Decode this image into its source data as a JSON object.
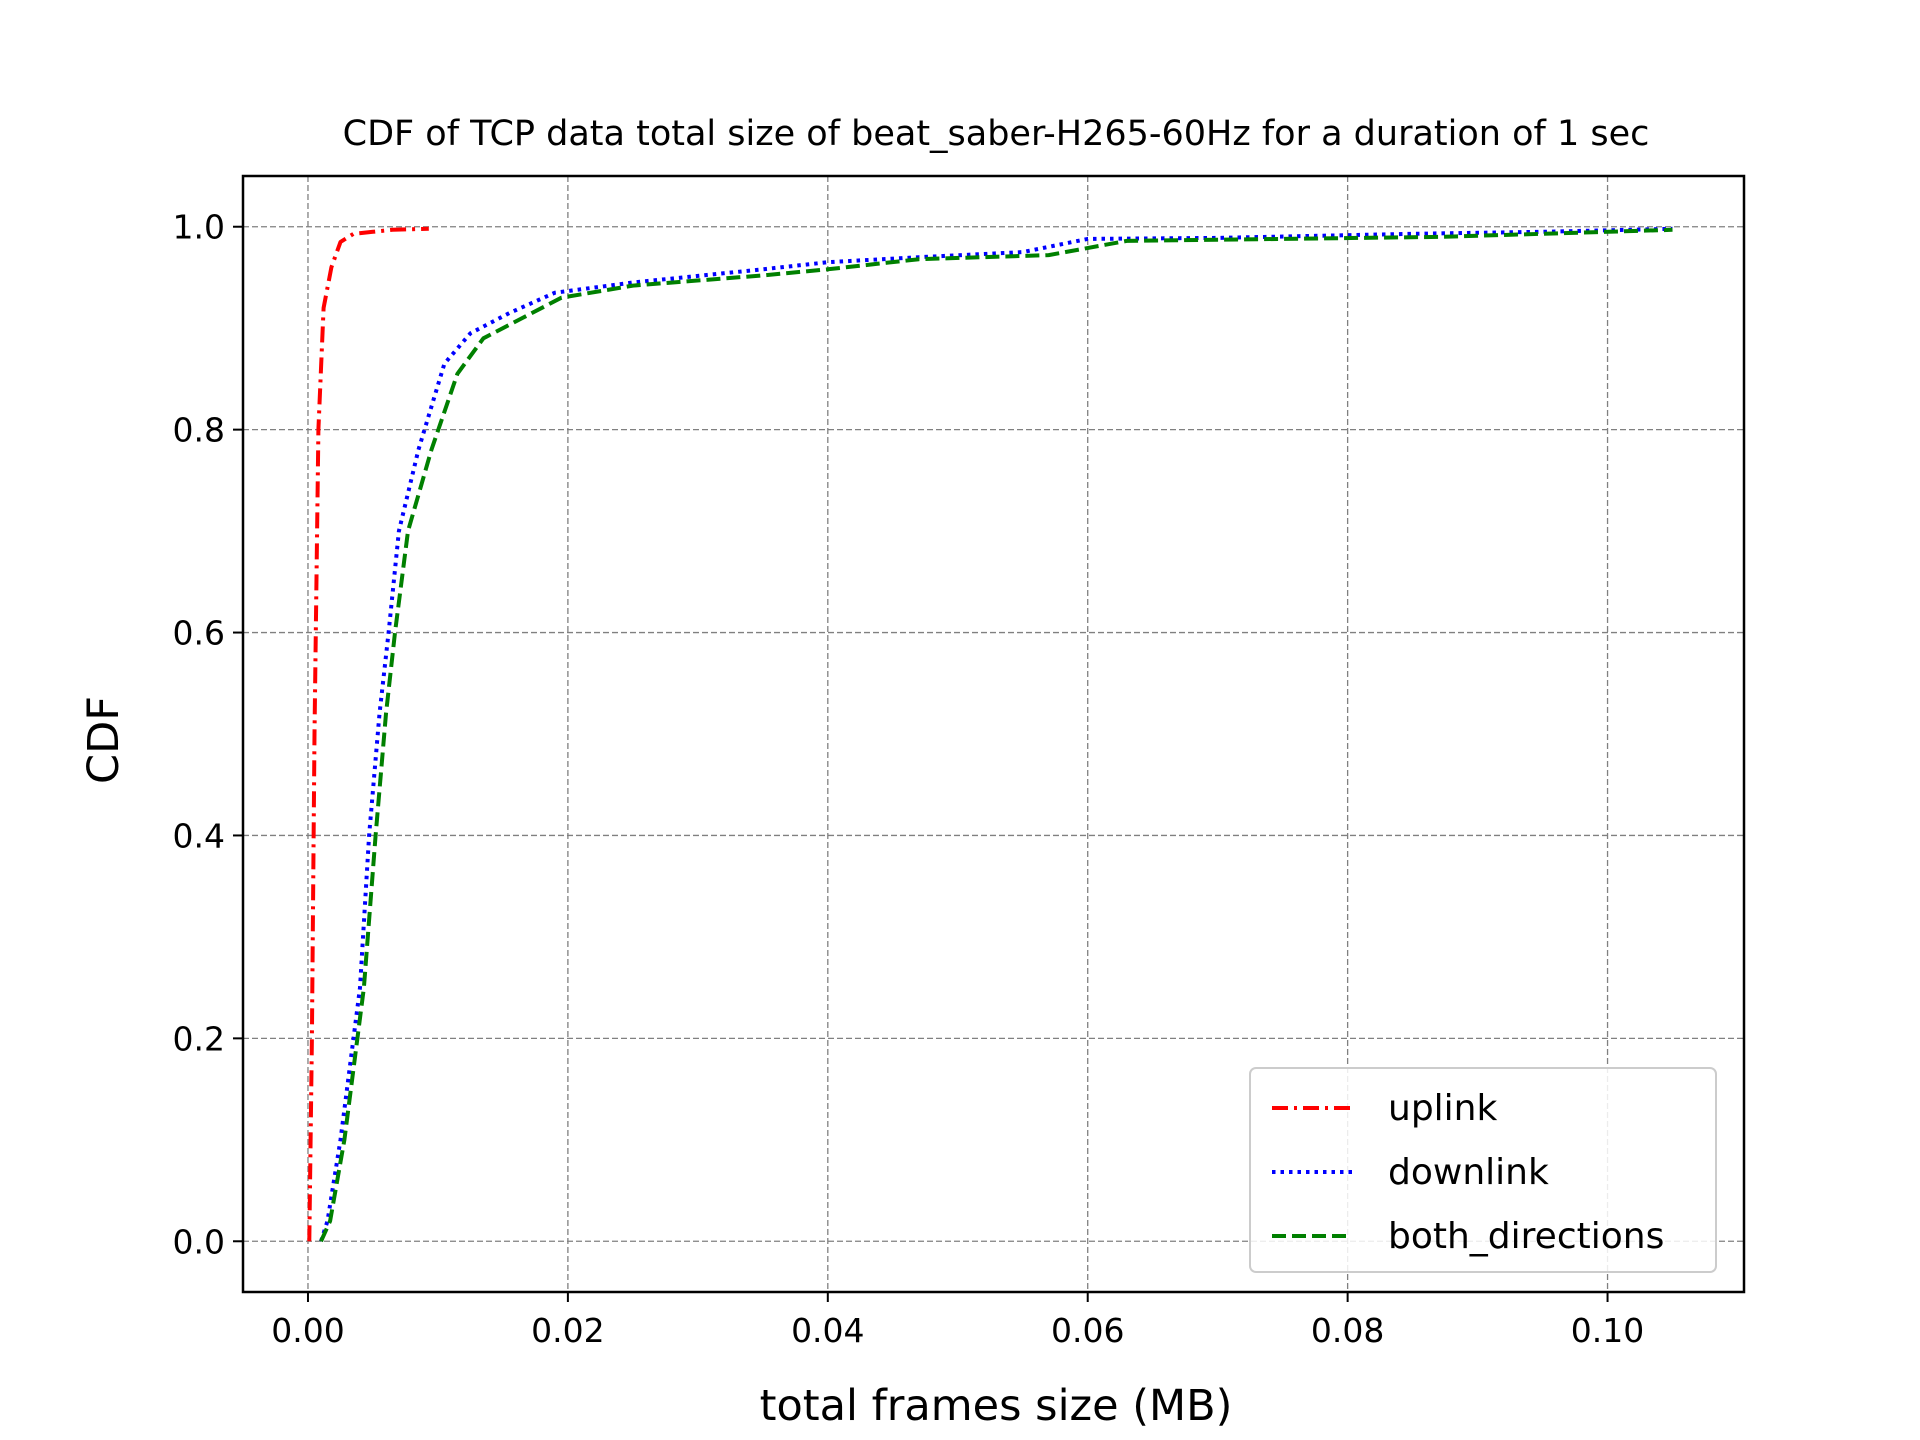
{
  "chart_data": {
    "type": "line",
    "title": "CDF of TCP data total size of beat_saber-H265-60Hz for a duration of 1 sec",
    "xlabel": "total frames size (MB)",
    "ylabel": "CDF",
    "xlim": [
      -0.005,
      0.1105
    ],
    "ylim": [
      -0.05,
      1.05
    ],
    "xticks": [
      0.0,
      0.02,
      0.04,
      0.06,
      0.08,
      0.1
    ],
    "xtick_labels": [
      "0.00",
      "0.02",
      "0.04",
      "0.06",
      "0.08",
      "0.10"
    ],
    "yticks": [
      0.0,
      0.2,
      0.4,
      0.6,
      0.8,
      1.0
    ],
    "ytick_labels": [
      "0.0",
      "0.2",
      "0.4",
      "0.6",
      "0.8",
      "1.0"
    ],
    "grid": true,
    "legend_position": "lower-right",
    "series": [
      {
        "name": "uplink",
        "color": "#ff0000",
        "style": "dashdot",
        "points": [
          [
            0.0001,
            0.0
          ],
          [
            0.0003,
            0.2
          ],
          [
            0.0005,
            0.5
          ],
          [
            0.0008,
            0.8
          ],
          [
            0.0012,
            0.92
          ],
          [
            0.0018,
            0.96
          ],
          [
            0.0025,
            0.985
          ],
          [
            0.0035,
            0.993
          ],
          [
            0.005,
            0.995
          ],
          [
            0.0065,
            0.997
          ],
          [
            0.0093,
            0.998
          ]
        ]
      },
      {
        "name": "downlink",
        "color": "#0000ff",
        "style": "dotted",
        "points": [
          [
            0.001,
            0.0
          ],
          [
            0.0015,
            0.02
          ],
          [
            0.0025,
            0.1
          ],
          [
            0.004,
            0.25
          ],
          [
            0.0047,
            0.4
          ],
          [
            0.0055,
            0.52
          ],
          [
            0.0062,
            0.6
          ],
          [
            0.007,
            0.7
          ],
          [
            0.0085,
            0.78
          ],
          [
            0.0105,
            0.865
          ],
          [
            0.0125,
            0.895
          ],
          [
            0.0155,
            0.915
          ],
          [
            0.019,
            0.935
          ],
          [
            0.025,
            0.945
          ],
          [
            0.035,
            0.958
          ],
          [
            0.04,
            0.965
          ],
          [
            0.047,
            0.97
          ],
          [
            0.055,
            0.975
          ],
          [
            0.06,
            0.988
          ],
          [
            0.07,
            0.989
          ],
          [
            0.085,
            0.993
          ],
          [
            0.095,
            0.995
          ],
          [
            0.105,
            0.998
          ]
        ]
      },
      {
        "name": "both_directions",
        "color": "#008000",
        "style": "dashed",
        "points": [
          [
            0.001,
            0.0
          ],
          [
            0.0017,
            0.02
          ],
          [
            0.0028,
            0.1
          ],
          [
            0.0043,
            0.25
          ],
          [
            0.0052,
            0.4
          ],
          [
            0.006,
            0.52
          ],
          [
            0.0067,
            0.6
          ],
          [
            0.0077,
            0.7
          ],
          [
            0.0095,
            0.78
          ],
          [
            0.0115,
            0.855
          ],
          [
            0.0135,
            0.89
          ],
          [
            0.0165,
            0.91
          ],
          [
            0.0195,
            0.93
          ],
          [
            0.025,
            0.942
          ],
          [
            0.035,
            0.952
          ],
          [
            0.04,
            0.958
          ],
          [
            0.047,
            0.968
          ],
          [
            0.057,
            0.972
          ],
          [
            0.063,
            0.986
          ],
          [
            0.075,
            0.988
          ],
          [
            0.087,
            0.99
          ],
          [
            0.095,
            0.993
          ],
          [
            0.105,
            0.997
          ]
        ]
      }
    ]
  }
}
